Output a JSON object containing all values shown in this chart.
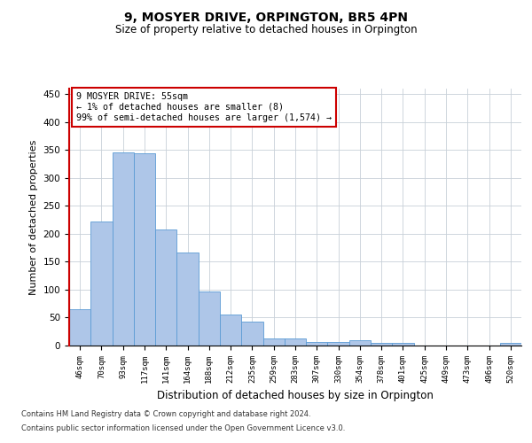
{
  "title": "9, MOSYER DRIVE, ORPINGTON, BR5 4PN",
  "subtitle": "Size of property relative to detached houses in Orpington",
  "xlabel": "Distribution of detached houses by size in Orpington",
  "ylabel": "Number of detached properties",
  "categories": [
    "46sqm",
    "70sqm",
    "93sqm",
    "117sqm",
    "141sqm",
    "164sqm",
    "188sqm",
    "212sqm",
    "235sqm",
    "259sqm",
    "283sqm",
    "307sqm",
    "330sqm",
    "354sqm",
    "378sqm",
    "401sqm",
    "425sqm",
    "449sqm",
    "473sqm",
    "496sqm",
    "520sqm"
  ],
  "values": [
    65,
    222,
    346,
    345,
    208,
    167,
    97,
    56,
    43,
    13,
    13,
    7,
    6,
    10,
    5,
    4,
    0,
    0,
    0,
    0,
    4
  ],
  "bar_color": "#aec6e8",
  "bar_edge_color": "#5b9bd5",
  "annotation_line1": "9 MOSYER DRIVE: 55sqm",
  "annotation_line2": "← 1% of detached houses are smaller (8)",
  "annotation_line3": "99% of semi-detached houses are larger (1,574) →",
  "annotation_box_color": "#cc0000",
  "footnote1": "Contains HM Land Registry data © Crown copyright and database right 2024.",
  "footnote2": "Contains public sector information licensed under the Open Government Licence v3.0.",
  "ylim": [
    0,
    460
  ],
  "yticks": [
    0,
    50,
    100,
    150,
    200,
    250,
    300,
    350,
    400,
    450
  ],
  "background_color": "#ffffff",
  "grid_color": "#c8d0d8"
}
